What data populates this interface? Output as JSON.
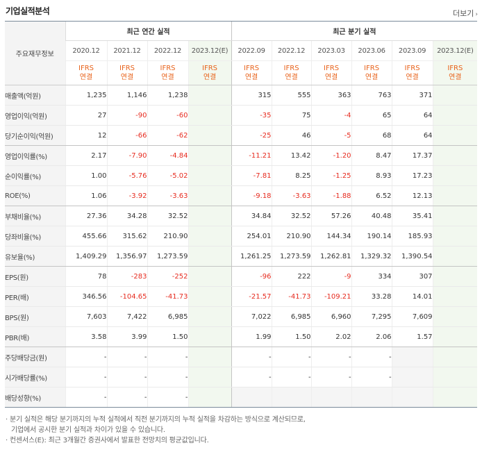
{
  "header": {
    "title": "기업실적분석",
    "more_label": "더보기",
    "more_icon": "chevron-right-icon"
  },
  "table": {
    "row_header_label": "주요재무정보",
    "annual_group_label": "최근 연간 실적",
    "quarter_group_label": "최근 분기 실적",
    "periods": [
      "2020.12",
      "2021.12",
      "2022.12",
      "2023.12(E)",
      "2022.09",
      "2022.12",
      "2023.03",
      "2023.06",
      "2023.09",
      "2023.12(E)"
    ],
    "acct_line1": "IFRS",
    "acct_line2": "연결",
    "rows": [
      {
        "label": "매출액(억원)",
        "values": [
          "1,235",
          "1,146",
          "1,238",
          "",
          "315",
          "555",
          "363",
          "763",
          "371",
          ""
        ]
      },
      {
        "label": "영업이익(억원)",
        "values": [
          "27",
          "-90",
          "-60",
          "",
          "-35",
          "75",
          "-4",
          "65",
          "64",
          ""
        ]
      },
      {
        "label": "당기순이익(억원)",
        "values": [
          "12",
          "-66",
          "-62",
          "",
          "-25",
          "46",
          "-5",
          "68",
          "64",
          ""
        ]
      },
      {
        "label": "영업이익률(%)",
        "values": [
          "2.17",
          "-7.90",
          "-4.84",
          "",
          "-11.21",
          "13.42",
          "-1.20",
          "8.47",
          "17.37",
          ""
        ]
      },
      {
        "label": "순이익률(%)",
        "values": [
          "1.00",
          "-5.76",
          "-5.02",
          "",
          "-7.81",
          "8.25",
          "-1.25",
          "8.93",
          "17.23",
          ""
        ]
      },
      {
        "label": "ROE(%)",
        "values": [
          "1.06",
          "-3.92",
          "-3.63",
          "",
          "-9.18",
          "-3.63",
          "-1.88",
          "6.52",
          "12.13",
          ""
        ]
      },
      {
        "label": "부채비율(%)",
        "values": [
          "27.36",
          "34.28",
          "32.52",
          "",
          "34.84",
          "32.52",
          "57.26",
          "40.48",
          "35.41",
          ""
        ]
      },
      {
        "label": "당좌비율(%)",
        "values": [
          "455.66",
          "315.62",
          "210.90",
          "",
          "254.01",
          "210.90",
          "144.34",
          "190.14",
          "185.93",
          ""
        ]
      },
      {
        "label": "유보율(%)",
        "values": [
          "1,409.29",
          "1,356.97",
          "1,273.59",
          "",
          "1,261.25",
          "1,273.59",
          "1,262.81",
          "1,329.32",
          "1,390.54",
          ""
        ]
      },
      {
        "label": "EPS(원)",
        "values": [
          "78",
          "-283",
          "-252",
          "",
          "-96",
          "222",
          "-9",
          "334",
          "307",
          ""
        ]
      },
      {
        "label": "PER(배)",
        "values": [
          "346.56",
          "-104.65",
          "-41.73",
          "",
          "-21.57",
          "-41.73",
          "-109.21",
          "33.28",
          "14.01",
          ""
        ]
      },
      {
        "label": "BPS(원)",
        "values": [
          "7,603",
          "7,422",
          "6,985",
          "",
          "7,022",
          "6,985",
          "6,960",
          "7,295",
          "7,609",
          ""
        ]
      },
      {
        "label": "PBR(배)",
        "values": [
          "3.58",
          "3.99",
          "1.50",
          "",
          "1.99",
          "1.50",
          "2.02",
          "2.06",
          "1.57",
          ""
        ]
      },
      {
        "label": "주당배당금(원)",
        "values": [
          "-",
          "-",
          "-",
          "",
          "-",
          "-",
          "-",
          "-",
          "",
          ""
        ]
      },
      {
        "label": "시가배당률(%)",
        "values": [
          "-",
          "-",
          "-",
          "",
          "-",
          "-",
          "-",
          "-",
          "",
          ""
        ]
      },
      {
        "label": "배당성향(%)",
        "values": [
          "-",
          "-",
          "-",
          "",
          "",
          "",
          "",
          "",
          "",
          ""
        ]
      }
    ]
  },
  "notes": {
    "line1": "· 분기 실적은 해당 분기까지의 누적 실적에서 직전 분기까지의 누적 실적을 차감하는 방식으로 계산되므로,",
    "line2": "기업에서 공시한 분기 실적과 차이가 있을 수 있습니다.",
    "line3": "· 컨센서스(E): 최근 3개월간 증권사에서 발표한 전망치의 평균값입니다."
  },
  "colors": {
    "negative": "#e62a1e",
    "accounting_label": "#e8621a",
    "estimate_bg": "#f2f8ef",
    "empty_bg": "#f5f5f5"
  }
}
